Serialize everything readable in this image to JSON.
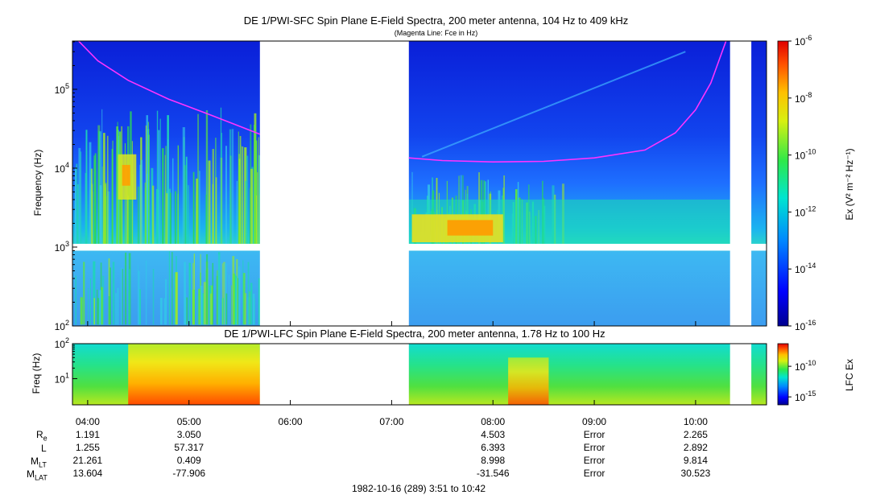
{
  "chart_data": [
    {
      "type": "heatmap",
      "title": "DE 1/PWI-SFC  Spin Plane E-Field Spectra, 200 meter antenna, 104 Hz to 409 kHz",
      "subtitle": "(Magenta Line: Fce in Hz)",
      "ylabel": "Frequency (Hz)",
      "y_scale": "log",
      "ylim": [
        100,
        409000
      ],
      "y_ticks": [
        {
          "value": 100,
          "base": "10",
          "exp": "2"
        },
        {
          "value": 1000,
          "base": "10",
          "exp": "3"
        },
        {
          "value": 10000,
          "base": "10",
          "exp": "4"
        },
        {
          "value": 100000,
          "base": "10",
          "exp": "5"
        }
      ],
      "x_range_hours": [
        3.85,
        10.7
      ],
      "data_gaps_hours": [
        [
          5.7,
          7.17
        ],
        [
          10.34,
          10.55
        ]
      ],
      "frequency_gap_hz": [
        900,
        1100
      ],
      "colorbar": {
        "label": "Ex (V² m⁻² Hz⁻¹)",
        "scale": "log",
        "range": [
          1e-16,
          1e-06
        ],
        "ticks": [
          {
            "base": "10",
            "exp": "-6"
          },
          {
            "base": "10",
            "exp": "-8"
          },
          {
            "base": "10",
            "exp": "-10"
          },
          {
            "base": "10",
            "exp": "-12"
          },
          {
            "base": "10",
            "exp": "-14"
          },
          {
            "base": "10",
            "exp": "-16"
          }
        ]
      },
      "fce_line": {
        "color": "#ff33ff",
        "segments": [
          [
            [
              3.91,
              409000
            ],
            [
              4.1,
              230000
            ],
            [
              4.4,
              130000
            ],
            [
              4.8,
              75000
            ],
            [
              5.2,
              48000
            ],
            [
              5.5,
              34000
            ],
            [
              5.7,
              27000
            ]
          ],
          [
            [
              7.17,
              13500
            ],
            [
              7.5,
              12500
            ],
            [
              8.0,
              12000
            ],
            [
              8.5,
              12200
            ],
            [
              9.0,
              13500
            ],
            [
              9.5,
              17000
            ],
            [
              9.8,
              28000
            ],
            [
              10.0,
              55000
            ],
            [
              10.15,
              120000
            ],
            [
              10.3,
              409000
            ]
          ]
        ]
      }
    },
    {
      "type": "heatmap",
      "title": "DE 1/PWI-LFC  Spin Plane E-Field Spectra, 200 meter antenna, 1.78 Hz to 100 Hz",
      "ylabel": "Freq (Hz)",
      "y_scale": "log",
      "ylim": [
        1.78,
        100
      ],
      "y_ticks": [
        {
          "value": 10,
          "base": "10",
          "exp": "1"
        },
        {
          "value": 100,
          "base": "10",
          "exp": "2"
        }
      ],
      "x_range_hours": [
        3.85,
        10.7
      ],
      "data_gaps_hours": [
        [
          5.7,
          7.17
        ],
        [
          10.34,
          10.55
        ]
      ],
      "colorbar": {
        "label": "LFC Ex",
        "scale": "log",
        "ticks": [
          {
            "base": "10",
            "exp": "-10"
          },
          {
            "base": "10",
            "exp": "-15"
          }
        ]
      },
      "x_ticks": [
        {
          "value": 4,
          "label": "04:00"
        },
        {
          "value": 5,
          "label": "05:00"
        },
        {
          "value": 6,
          "label": "06:00"
        },
        {
          "value": 7,
          "label": "07:00"
        },
        {
          "value": 8,
          "label": "08:00"
        },
        {
          "value": 9,
          "label": "09:00"
        },
        {
          "value": 10,
          "label": "10:00"
        }
      ]
    }
  ],
  "ephemeris": {
    "rows": [
      {
        "label": "R",
        "sub": "e",
        "values": [
          "1.191",
          "3.050",
          "",
          "",
          "4.503",
          "Error",
          "2.265"
        ]
      },
      {
        "label": "L",
        "sub": "",
        "values": [
          "1.255",
          "57.317",
          "",
          "",
          "6.393",
          "Error",
          "2.892"
        ]
      },
      {
        "label": "M",
        "sub": "LT",
        "values": [
          "21.261",
          "0.409",
          "",
          "",
          "8.998",
          "Error",
          "9.814"
        ]
      },
      {
        "label": "M",
        "sub": "LAT",
        "values": [
          "13.604",
          "-77.906",
          "",
          "",
          "-31.546",
          "Error",
          "30.523"
        ]
      }
    ]
  },
  "footer": "1982-10-16 (289) 3:51 to 10:42"
}
